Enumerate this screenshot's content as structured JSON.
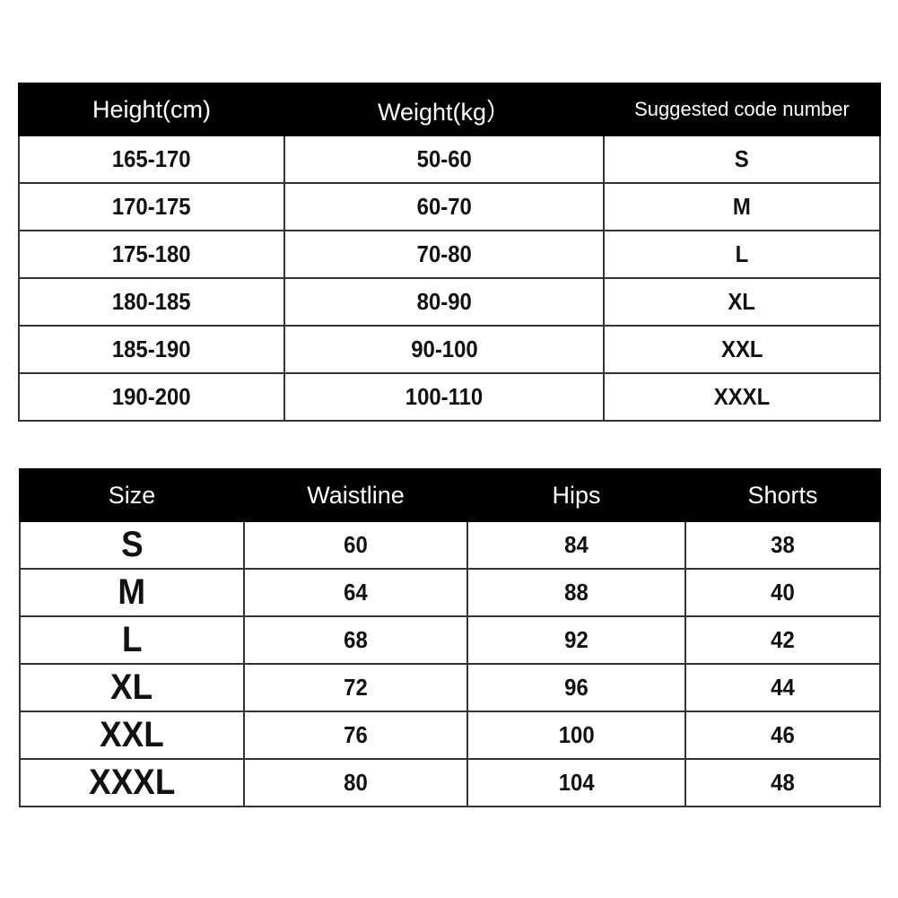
{
  "height_weight_table": {
    "headers": [
      "Height(cm)",
      "Weight(kg）",
      "Suggested code number"
    ],
    "rows": [
      [
        "165-170",
        "50-60",
        "S"
      ],
      [
        "170-175",
        "60-70",
        "M"
      ],
      [
        "175-180",
        "70-80",
        "L"
      ],
      [
        "180-185",
        "80-90",
        "XL"
      ],
      [
        "185-190",
        "90-100",
        "XXL"
      ],
      [
        "190-200",
        "100-110",
        "XXXL"
      ]
    ]
  },
  "measurement_table": {
    "headers": [
      "Size",
      "Waistline",
      "Hips",
      "Shorts"
    ],
    "rows": [
      [
        "S",
        "60",
        "84",
        "38"
      ],
      [
        "M",
        "64",
        "88",
        "40"
      ],
      [
        "L",
        "68",
        "92",
        "42"
      ],
      [
        "XL",
        "72",
        "96",
        "44"
      ],
      [
        "XXL",
        "76",
        "100",
        "46"
      ],
      [
        "XXXL",
        "80",
        "104",
        "48"
      ]
    ]
  },
  "colors": {
    "header_bg": "#000000",
    "header_text": "#ffffff",
    "cell_text": "#111111"
  }
}
